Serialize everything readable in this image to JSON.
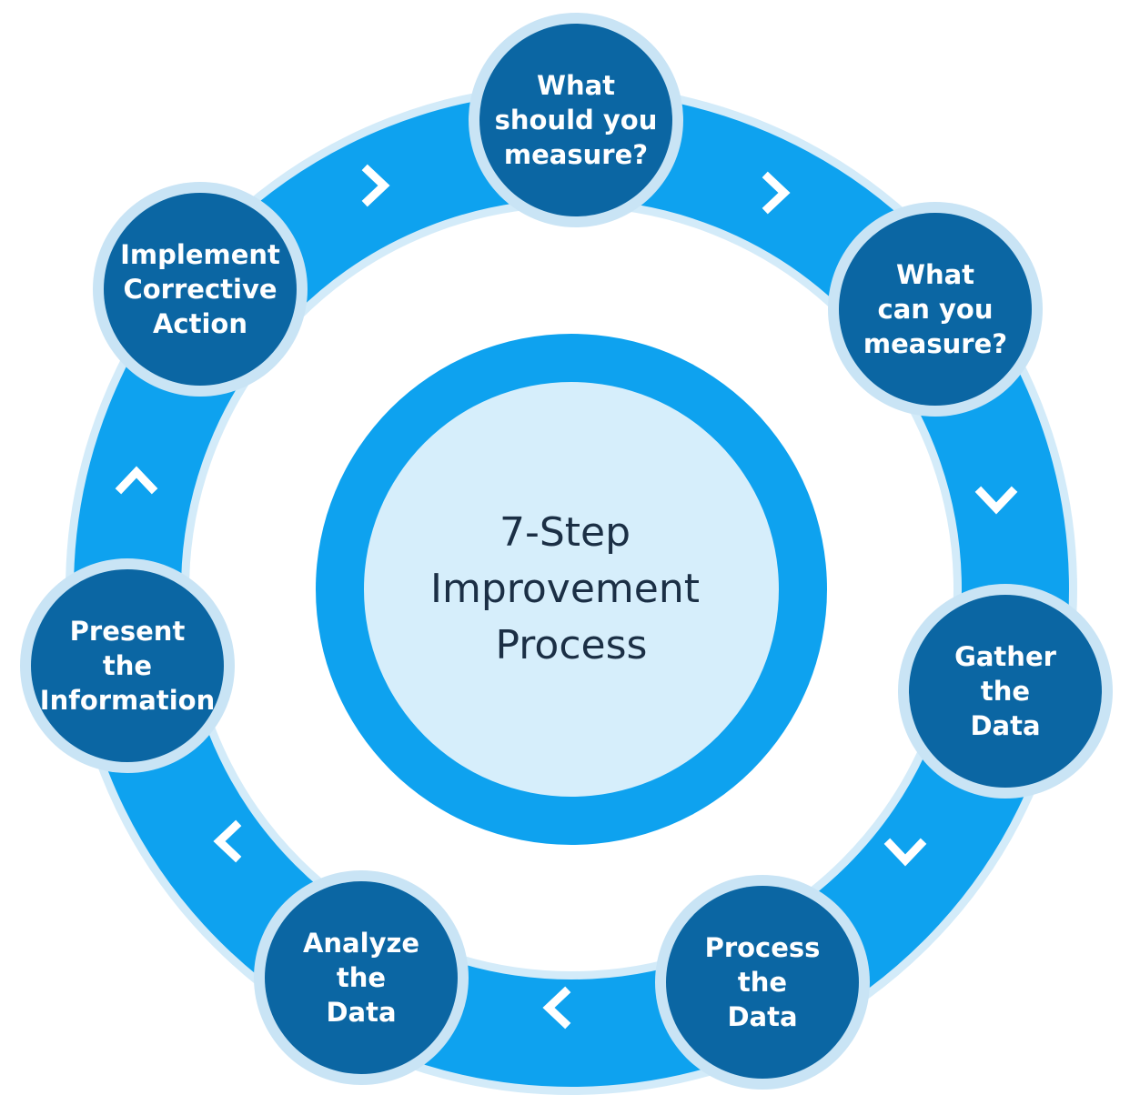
{
  "center": {
    "lines": [
      "7-Step",
      "Improvement",
      "Process"
    ]
  },
  "steps": [
    {
      "lines": [
        "What",
        "should you",
        "measure?"
      ]
    },
    {
      "lines": [
        "What",
        "can you",
        "measure?"
      ]
    },
    {
      "lines": [
        "Gather",
        "the",
        "Data"
      ]
    },
    {
      "lines": [
        "Process",
        "the",
        "Data"
      ]
    },
    {
      "lines": [
        "Analyze",
        "the",
        "Data"
      ]
    },
    {
      "lines": [
        "Present",
        "the",
        "Information"
      ]
    },
    {
      "lines": [
        "Implement",
        "Corrective",
        "Action"
      ]
    }
  ],
  "arrows": [
    {
      "icon": "chevron-right-icon"
    },
    {
      "icon": "chevron-right-icon"
    },
    {
      "icon": "chevron-down-icon"
    },
    {
      "icon": "chevron-down-icon"
    },
    {
      "icon": "chevron-left-icon"
    },
    {
      "icon": "chevron-left-icon"
    },
    {
      "icon": "chevron-up-icon"
    }
  ],
  "colors": {
    "ring": "#0ea2ef",
    "ring_outline": "#d3ebf9",
    "node_fill": "#0b66a3",
    "node_border": "#c9e4f5",
    "center_ring": "#0ea2ef",
    "center_fill": "#d6eefb",
    "center_text": "#1b2f45",
    "node_text": "#ffffff"
  }
}
